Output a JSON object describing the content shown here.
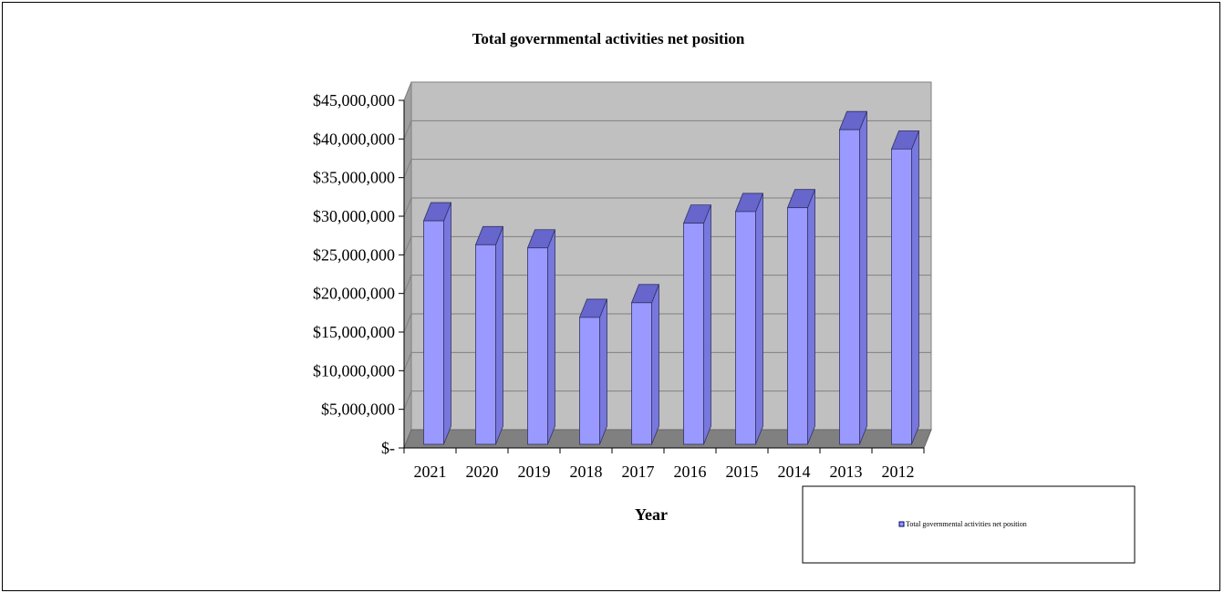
{
  "chart_data": {
    "type": "bar",
    "title": "Total governmental activities net position",
    "xlabel": "Year",
    "ylabel": "",
    "categories": [
      "2021",
      "2020",
      "2019",
      "2018",
      "2017",
      "2016",
      "2015",
      "2014",
      "2013",
      "2012"
    ],
    "series": [
      {
        "name": "Total governmental activities net position",
        "values": [
          29400000,
          26300000,
          25900000,
          16900000,
          18800000,
          29100000,
          30600000,
          31100000,
          41200000,
          38700000
        ]
      }
    ],
    "ylim": [
      0,
      45000000
    ],
    "y_ticks": [
      0,
      5000000,
      10000000,
      15000000,
      20000000,
      25000000,
      30000000,
      35000000,
      40000000,
      45000000
    ],
    "y_tick_labels": [
      "$-",
      "$5,000,000",
      "$10,000,000",
      "$15,000,000",
      "$20,000,000",
      "$25,000,000",
      "$30,000,000",
      "$35,000,000",
      "$40,000,000",
      "$45,000,000"
    ],
    "grid": true,
    "legend": "bottom-right",
    "colors": {
      "bar_front": "#9999ff",
      "bar_top": "#6666cc",
      "bar_side": "#7777dd",
      "bar_outline": "#333366",
      "wall": "#c0c0c0",
      "floor": "#808080",
      "side_wall": "#a0a0a0",
      "gridline": "#808080"
    }
  }
}
